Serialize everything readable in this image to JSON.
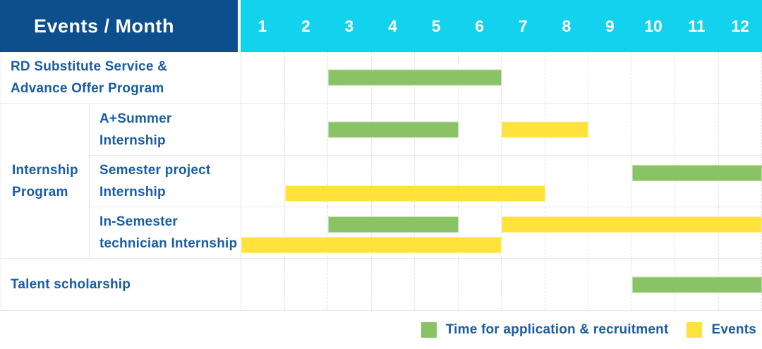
{
  "header": {
    "title": "Events / Month"
  },
  "colors": {
    "header_bg": "#0d4e8c",
    "month_header_bg": "#12d2ee",
    "label_text": "#1a5da1",
    "application_green": "#8ac266",
    "event_yellow": "#ffe23c"
  },
  "chart_data": {
    "type": "bar",
    "variant": "gantt-table",
    "title": "Events / Month",
    "months": [
      "1",
      "2",
      "3",
      "4",
      "5",
      "6",
      "7",
      "8",
      "9",
      "10",
      "11",
      "12"
    ],
    "group": {
      "label": "Internship\nProgram",
      "rows_spanned": [
        "A+Summer Internship",
        "Semester project Internship",
        "In-Semester technician Internship"
      ]
    },
    "rows": [
      {
        "label": "RD Substitute Service &\nAdvance Offer Program",
        "in_group": false,
        "bars": [
          {
            "type": "application",
            "from_month": 3,
            "to_month": 6,
            "line": "center"
          }
        ]
      },
      {
        "label": "A+Summer\nInternship",
        "in_group": true,
        "bars": [
          {
            "type": "application",
            "from_month": 3,
            "to_month": 5,
            "line": "center"
          },
          {
            "type": "event",
            "from_month": 7,
            "to_month": 8,
            "line": "center"
          }
        ]
      },
      {
        "label": "Semester project\nInternship",
        "in_group": true,
        "bars": [
          {
            "type": "application",
            "from_month": 10,
            "to_month": 12,
            "line": "top"
          },
          {
            "type": "event",
            "from_month": 2,
            "to_month": 7,
            "line": "bottom"
          }
        ]
      },
      {
        "label": "In-Semester\ntechnician Internship",
        "in_group": true,
        "bars": [
          {
            "type": "application",
            "from_month": 3,
            "to_month": 5,
            "line": "top"
          },
          {
            "type": "event",
            "from_month": 7,
            "to_month": 12,
            "line": "top"
          },
          {
            "type": "event",
            "from_month": 1,
            "to_month": 6,
            "line": "bottom"
          }
        ]
      },
      {
        "label": "Talent scholarship",
        "in_group": false,
        "bars": [
          {
            "type": "application",
            "from_month": 10,
            "to_month": 12,
            "line": "center"
          }
        ]
      }
    ],
    "legend": [
      {
        "type": "application",
        "label": "Time for application & recruitment"
      },
      {
        "type": "event",
        "label": "Events"
      }
    ]
  }
}
